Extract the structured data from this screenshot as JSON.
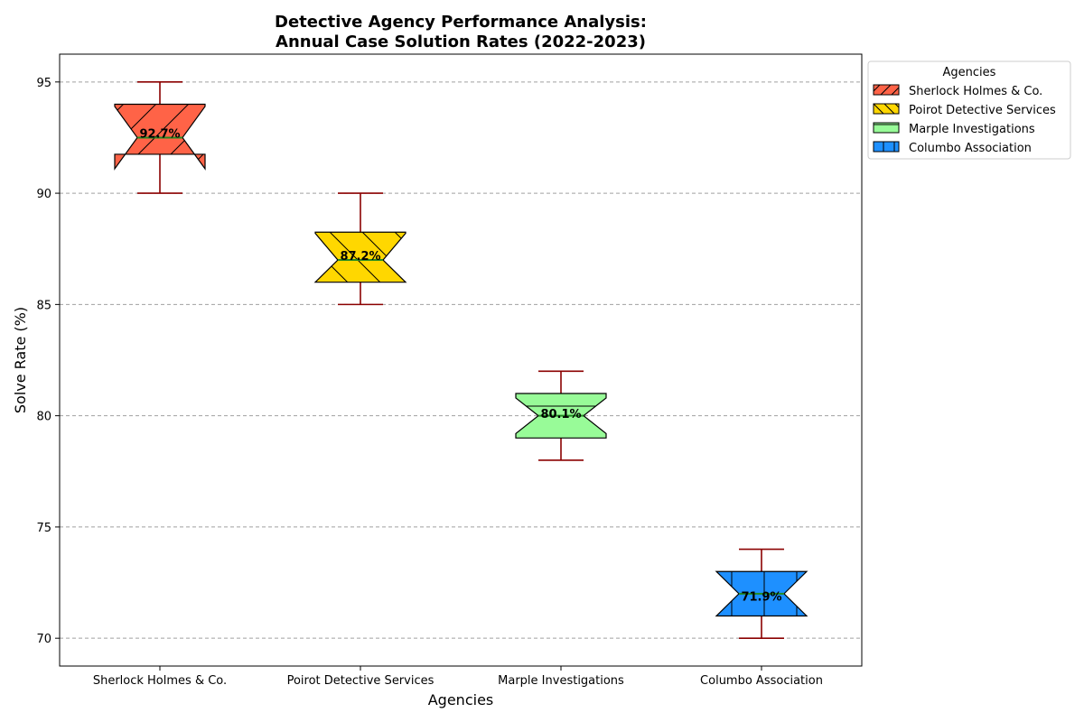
{
  "chart_data": {
    "type": "box",
    "title_line1": "Detective Agency Performance Analysis:",
    "title_line2": "Annual Case Solution Rates (2022-2023)",
    "xlabel": "Agencies",
    "ylabel": "Solve Rate (%)",
    "ylim": [
      68.75,
      96.25
    ],
    "yticks": [
      70,
      75,
      80,
      85,
      90,
      95
    ],
    "grid": "y-dashed",
    "legend_title": "Agencies",
    "legend_placement": "outside-top-right",
    "whisker_color": "#8b0000",
    "median_color": "#228b22",
    "categories": [
      "Sherlock Holmes & Co.",
      "Poirot Detective Services",
      "Marple Investigations",
      "Columbo Association"
    ],
    "series": [
      {
        "name": "Sherlock Holmes & Co.",
        "color": "#ff6347",
        "hatch": "/",
        "min": 90,
        "q1": 91.75,
        "median": 92.5,
        "q3": 94,
        "max": 95,
        "notch_low": 91.1,
        "notch_high": 93.9,
        "mean_label": "92.7%",
        "mean": 92.7
      },
      {
        "name": "Poirot Detective Services",
        "color": "#ffd700",
        "hatch": "\\",
        "min": 85,
        "q1": 86,
        "median": 87,
        "q3": 88.25,
        "max": 90,
        "notch_low": 86,
        "notch_high": 88.2,
        "mean_label": "87.2%",
        "mean": 87.2
      },
      {
        "name": "Marple Investigations",
        "color": "#98fb98",
        "hatch": "-",
        "min": 78,
        "q1": 79,
        "median": 80,
        "q3": 81,
        "max": 82,
        "notch_low": 79.2,
        "notch_high": 80.8,
        "mean_label": "80.1%",
        "mean": 80.1
      },
      {
        "name": "Columbo Association",
        "color": "#1e90ff",
        "hatch": "|",
        "min": 70,
        "q1": 71,
        "median": 72,
        "q3": 73,
        "max": 74,
        "notch_low": 71,
        "notch_high": 73,
        "mean_label": "71.9%",
        "mean": 71.9
      }
    ]
  }
}
